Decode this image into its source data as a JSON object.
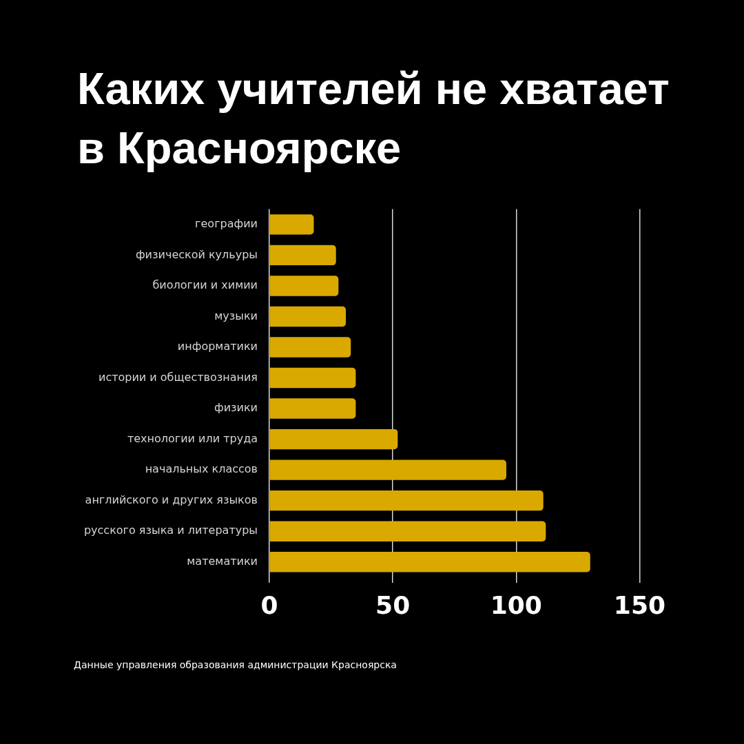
{
  "chart_data": {
    "type": "bar",
    "orientation": "horizontal",
    "title": "Каких учителей не хватает в Красноярске",
    "categories": [
      "географии",
      "физической кульуры",
      "биологии и химии",
      "музыки",
      "информатики",
      "истории и обществознания",
      "физики",
      "технологии или труда",
      "начальных классов",
      "английского и других языков",
      "русского языка и литературы",
      "математики"
    ],
    "values": [
      18,
      27,
      28,
      31,
      33,
      35,
      35,
      52,
      96,
      111,
      112,
      130
    ],
    "color": "#d9a900",
    "xlim": [
      0,
      150
    ],
    "xticks": [
      0,
      50,
      100,
      150
    ],
    "grid": "x",
    "annotations": [
      "Данные управления образования администрации Красноярска"
    ]
  }
}
